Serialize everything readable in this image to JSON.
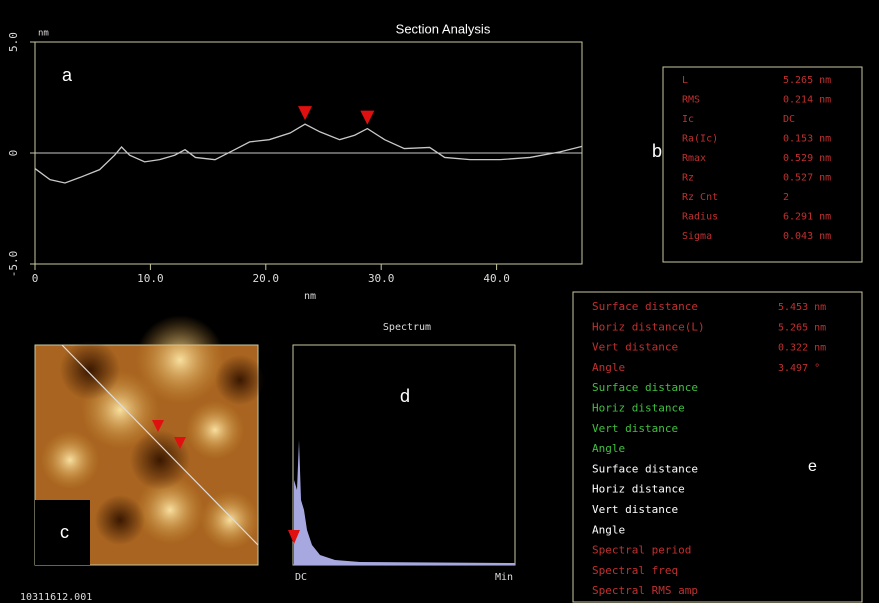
{
  "title": "Section Analysis",
  "section_plot": {
    "panel_label": "a",
    "y_unit": "nm",
    "x_label": "nm",
    "xlim": [
      0,
      47.4
    ],
    "ylim": [
      -5,
      5
    ],
    "xticks": [
      0,
      {
        "value": 10,
        "label": "10.0"
      },
      {
        "value": 20,
        "label": "20.0"
      },
      {
        "value": 30,
        "label": "30.0"
      },
      {
        "value": 40,
        "label": "40.0"
      }
    ],
    "yticks": [
      {
        "value": 5,
        "label": "5.0"
      },
      0,
      {
        "value": -5,
        "label": "-5.0"
      }
    ],
    "profile": {
      "x": [
        0,
        1.3,
        2.6,
        3.9,
        5.6,
        6.9,
        7.5,
        8.2,
        9.5,
        10.8,
        12.1,
        13.0,
        13.9,
        15.6,
        17.3,
        18.6,
        20.3,
        22.1,
        23.4,
        24.7,
        26.4,
        27.7,
        28.8,
        30.3,
        32.0,
        34.2,
        35.5,
        37.7,
        40.3,
        42.9,
        45.5,
        47.4
      ],
      "y": [
        -0.7,
        -1.2,
        -1.35,
        -1.1,
        -0.75,
        -0.1,
        0.27,
        -0.1,
        -0.4,
        -0.3,
        -0.1,
        0.15,
        -0.2,
        -0.3,
        0.15,
        0.5,
        0.6,
        0.9,
        1.3,
        0.95,
        0.6,
        0.8,
        1.1,
        0.6,
        0.2,
        0.25,
        -0.2,
        -0.3,
        -0.3,
        -0.2,
        0.05,
        0.3
      ],
      "color": "#c8c8c8"
    },
    "markers": [
      {
        "x": 23.4,
        "y": 1.3
      },
      {
        "x": 28.8,
        "y": 1.1
      }
    ],
    "marker_color": "#e01010"
  },
  "roughness": {
    "panel_label": "b",
    "rows": [
      [
        "L",
        "5.265 nm"
      ],
      [
        "RMS",
        "0.214 nm"
      ],
      [
        "Ic",
        "DC"
      ],
      [
        "Ra(Ic)",
        "0.153 nm"
      ],
      [
        "Rmax",
        "0.529 nm"
      ],
      [
        "Rz",
        "0.527 nm"
      ],
      [
        "Rz Cnt",
        "2"
      ],
      [
        "Radius",
        "6.291 nm"
      ],
      [
        "Sigma",
        "0.043 nm"
      ]
    ],
    "color": "#c03030"
  },
  "image": {
    "panel_label": "c",
    "file": "10311612.001"
  },
  "spectrum": {
    "panel_label": "d",
    "title": "Spectrum",
    "x_start": "DC",
    "x_end": "Min"
  },
  "measurements": {
    "panel_label": "e",
    "rows": [
      {
        "label": "Surface distance",
        "value": "5.453 nm",
        "color": "#c03030"
      },
      {
        "label": "Horiz distance(L)",
        "value": "5.265 nm",
        "color": "#c03030"
      },
      {
        "label": "Vert distance",
        "value": "0.322 nm",
        "color": "#c03030"
      },
      {
        "label": "Angle",
        "value": "3.497 °",
        "color": "#c03030"
      },
      {
        "label": "Surface distance",
        "color": "#40c040"
      },
      {
        "label": "Horiz distance",
        "color": "#40c040"
      },
      {
        "label": "Vert distance",
        "color": "#40c040"
      },
      {
        "label": "Angle",
        "color": "#40c040"
      },
      {
        "label": "Surface distance",
        "color": "#ffffff"
      },
      {
        "label": "Horiz distance",
        "color": "#ffffff"
      },
      {
        "label": "Vert distance",
        "color": "#ffffff"
      },
      {
        "label": "Angle",
        "color": "#ffffff"
      },
      {
        "label": "Spectral period",
        "color": "#c03030"
      },
      {
        "label": "Spectral freq",
        "color": "#c03030"
      },
      {
        "label": "Spectral RMS amp",
        "color": "#c03030"
      }
    ]
  }
}
